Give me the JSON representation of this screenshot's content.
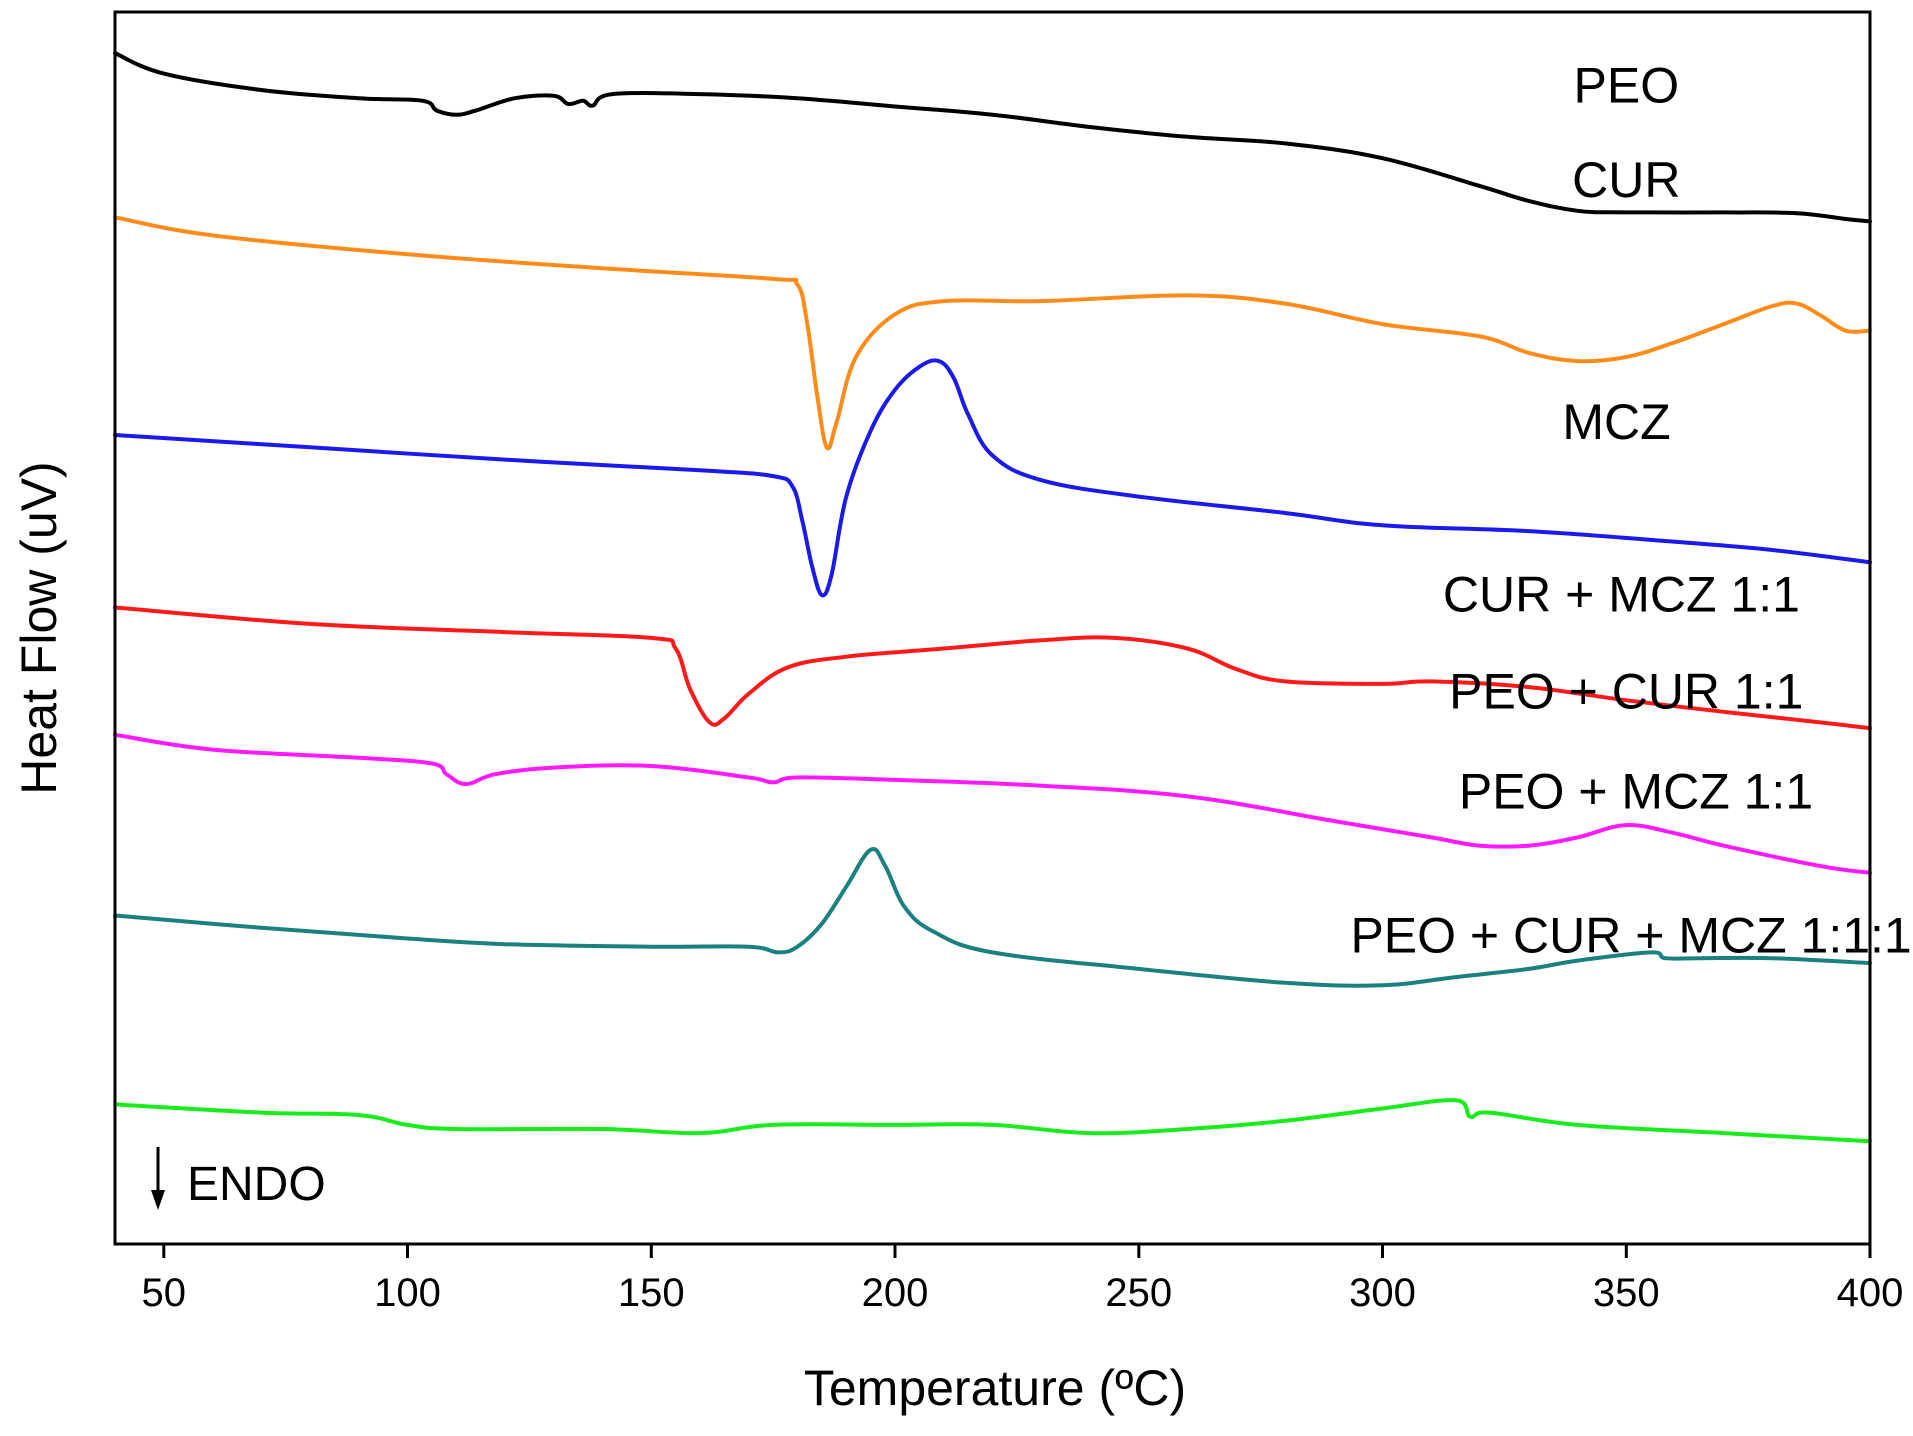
{
  "chart_data": {
    "type": "line",
    "title": "",
    "xlabel": "Temperature (ºC)",
    "ylabel": "Heat Flow (uV)",
    "xlim": [
      40,
      400
    ],
    "ylim": [
      -0.5,
      14.5
    ],
    "x_ticks": [
      "50",
      "100",
      "150",
      "200",
      "250",
      "300",
      "350",
      "400"
    ],
    "y_ticks_shown": false,
    "grid": false,
    "legend": "labels placed next to each curve (right side)",
    "annotation": {
      "text": "ENDO",
      "arrow": "down"
    },
    "series": [
      {
        "name": "PEO",
        "color": "#000000",
        "label": "PEO",
        "points": [
          [
            40,
            14.0
          ],
          [
            50,
            13.75
          ],
          [
            70,
            13.55
          ],
          [
            90,
            13.45
          ],
          [
            103,
            13.42
          ],
          [
            106,
            13.3
          ],
          [
            110,
            13.25
          ],
          [
            114,
            13.3
          ],
          [
            122,
            13.45
          ],
          [
            130,
            13.48
          ],
          [
            133,
            13.38
          ],
          [
            136,
            13.42
          ],
          [
            138,
            13.36
          ],
          [
            142,
            13.5
          ],
          [
            160,
            13.5
          ],
          [
            180,
            13.45
          ],
          [
            200,
            13.35
          ],
          [
            220,
            13.25
          ],
          [
            240,
            13.1
          ],
          [
            260,
            12.98
          ],
          [
            280,
            12.9
          ],
          [
            300,
            12.72
          ],
          [
            320,
            12.38
          ],
          [
            330,
            12.2
          ],
          [
            340,
            12.08
          ],
          [
            350,
            12.06
          ],
          [
            370,
            12.06
          ],
          [
            385,
            12.05
          ],
          [
            395,
            11.98
          ],
          [
            400,
            11.95
          ]
        ]
      },
      {
        "name": "CUR",
        "color": "#ff8c1a",
        "label": "CUR",
        "points": [
          [
            40,
            12.0
          ],
          [
            60,
            11.78
          ],
          [
            100,
            11.55
          ],
          [
            140,
            11.38
          ],
          [
            175,
            11.25
          ],
          [
            180,
            11.18
          ],
          [
            182,
            10.7
          ],
          [
            184,
            9.85
          ],
          [
            186,
            9.2
          ],
          [
            188,
            9.5
          ],
          [
            192,
            10.3
          ],
          [
            200,
            10.82
          ],
          [
            210,
            10.98
          ],
          [
            230,
            10.98
          ],
          [
            260,
            11.05
          ],
          [
            280,
            10.95
          ],
          [
            300,
            10.7
          ],
          [
            320,
            10.55
          ],
          [
            330,
            10.35
          ],
          [
            340,
            10.25
          ],
          [
            350,
            10.3
          ],
          [
            360,
            10.48
          ],
          [
            370,
            10.7
          ],
          [
            380,
            10.92
          ],
          [
            385,
            10.95
          ],
          [
            390,
            10.8
          ],
          [
            395,
            10.62
          ],
          [
            400,
            10.62
          ]
        ]
      },
      {
        "name": "MCZ",
        "color": "#1a1aeb",
        "label": "MCZ",
        "points": [
          [
            40,
            9.35
          ],
          [
            80,
            9.2
          ],
          [
            120,
            9.05
          ],
          [
            160,
            8.92
          ],
          [
            175,
            8.85
          ],
          [
            179,
            8.72
          ],
          [
            181,
            8.3
          ],
          [
            183,
            7.75
          ],
          [
            185,
            7.4
          ],
          [
            187,
            7.65
          ],
          [
            190,
            8.6
          ],
          [
            195,
            9.4
          ],
          [
            200,
            9.9
          ],
          [
            205,
            10.18
          ],
          [
            209,
            10.25
          ],
          [
            212,
            10.05
          ],
          [
            215,
            9.6
          ],
          [
            220,
            9.1
          ],
          [
            230,
            8.8
          ],
          [
            250,
            8.6
          ],
          [
            280,
            8.4
          ],
          [
            300,
            8.25
          ],
          [
            330,
            8.18
          ],
          [
            360,
            8.05
          ],
          [
            380,
            7.95
          ],
          [
            400,
            7.8
          ]
        ]
      },
      {
        "name": "CUR + MCZ 1:1",
        "color": "#ff1a1a",
        "label": "CUR + MCZ 1:1",
        "points": [
          [
            40,
            7.25
          ],
          [
            80,
            7.05
          ],
          [
            120,
            6.95
          ],
          [
            150,
            6.88
          ],
          [
            155,
            6.75
          ],
          [
            158,
            6.25
          ],
          [
            162,
            5.85
          ],
          [
            165,
            5.9
          ],
          [
            170,
            6.2
          ],
          [
            178,
            6.52
          ],
          [
            190,
            6.65
          ],
          [
            210,
            6.75
          ],
          [
            230,
            6.85
          ],
          [
            245,
            6.88
          ],
          [
            260,
            6.75
          ],
          [
            270,
            6.5
          ],
          [
            280,
            6.35
          ],
          [
            300,
            6.32
          ],
          [
            310,
            6.35
          ],
          [
            330,
            6.28
          ],
          [
            350,
            6.12
          ],
          [
            370,
            5.98
          ],
          [
            390,
            5.85
          ],
          [
            400,
            5.78
          ]
        ]
      },
      {
        "name": "PEO + CUR 1:1",
        "color": "#ff1aff",
        "label": "PEO + CUR 1:1",
        "points": [
          [
            40,
            5.7
          ],
          [
            60,
            5.52
          ],
          [
            90,
            5.42
          ],
          [
            105,
            5.35
          ],
          [
            108,
            5.22
          ],
          [
            112,
            5.1
          ],
          [
            118,
            5.22
          ],
          [
            130,
            5.3
          ],
          [
            150,
            5.32
          ],
          [
            170,
            5.18
          ],
          [
            175,
            5.12
          ],
          [
            180,
            5.18
          ],
          [
            200,
            5.15
          ],
          [
            230,
            5.08
          ],
          [
            260,
            4.95
          ],
          [
            290,
            4.65
          ],
          [
            310,
            4.45
          ],
          [
            320,
            4.35
          ],
          [
            330,
            4.35
          ],
          [
            340,
            4.45
          ],
          [
            350,
            4.6
          ],
          [
            360,
            4.5
          ],
          [
            370,
            4.35
          ],
          [
            390,
            4.1
          ],
          [
            400,
            4.02
          ]
        ]
      },
      {
        "name": "PEO + MCZ 1:1",
        "color": "#1a8080",
        "label": "PEO + MCZ 1:1",
        "points": [
          [
            40,
            3.5
          ],
          [
            70,
            3.35
          ],
          [
            100,
            3.22
          ],
          [
            120,
            3.15
          ],
          [
            150,
            3.12
          ],
          [
            170,
            3.12
          ],
          [
            176,
            3.05
          ],
          [
            180,
            3.12
          ],
          [
            185,
            3.4
          ],
          [
            190,
            3.85
          ],
          [
            195,
            4.3
          ],
          [
            198,
            4.1
          ],
          [
            202,
            3.6
          ],
          [
            208,
            3.3
          ],
          [
            220,
            3.05
          ],
          [
            250,
            2.85
          ],
          [
            280,
            2.68
          ],
          [
            300,
            2.65
          ],
          [
            315,
            2.75
          ],
          [
            330,
            2.85
          ],
          [
            340,
            2.95
          ],
          [
            355,
            3.05
          ],
          [
            358,
            2.98
          ],
          [
            365,
            2.98
          ],
          [
            380,
            2.98
          ],
          [
            400,
            2.92
          ]
        ]
      },
      {
        "name": "PEO + CUR + MCZ 1:1:1",
        "color": "#1aeb1a",
        "label": "PEO + CUR + MCZ 1:1:1",
        "points": [
          [
            40,
            1.2
          ],
          [
            70,
            1.1
          ],
          [
            90,
            1.07
          ],
          [
            100,
            0.95
          ],
          [
            110,
            0.9
          ],
          [
            140,
            0.9
          ],
          [
            160,
            0.85
          ],
          [
            175,
            0.95
          ],
          [
            200,
            0.95
          ],
          [
            220,
            0.95
          ],
          [
            240,
            0.85
          ],
          [
            260,
            0.9
          ],
          [
            280,
            1.0
          ],
          [
            300,
            1.15
          ],
          [
            315,
            1.25
          ],
          [
            318,
            1.05
          ],
          [
            322,
            1.1
          ],
          [
            340,
            0.95
          ],
          [
            370,
            0.85
          ],
          [
            400,
            0.75
          ]
        ]
      }
    ]
  }
}
